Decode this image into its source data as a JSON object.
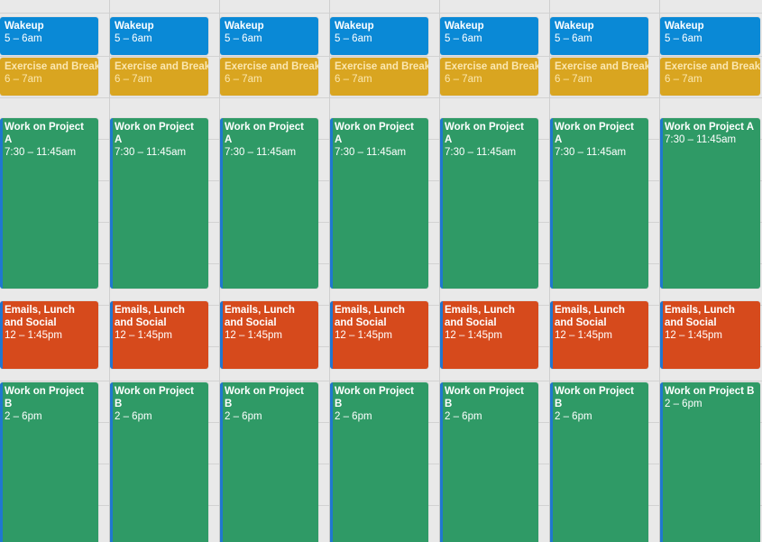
{
  "calendar": {
    "colors": {
      "wakeup": "#0a89d6",
      "exercise": "#d9a520",
      "project_a": "#2f9a66",
      "emails": "#d64a1c",
      "project_b": "#2f9a66",
      "stripe": "#1f77d0"
    },
    "days": [
      {
        "events": [
          {
            "title": "Wakeup",
            "time": "5 – 6am"
          },
          {
            "title": "Exercise and Breakfast",
            "time": "6 – 7am"
          },
          {
            "title": "Work on Project A",
            "time": "7:30 – 11:45am"
          },
          {
            "title": "Emails, Lunch and Social",
            "time": "12 – 1:45pm"
          },
          {
            "title": "Work on Project B",
            "time": "2 – 6pm"
          }
        ]
      },
      {
        "events": [
          {
            "title": "Wakeup",
            "time": "5 – 6am"
          },
          {
            "title": "Exercise and Breakfast",
            "time": "6 – 7am"
          },
          {
            "title": "Work on Project A",
            "time": "7:30 – 11:45am"
          },
          {
            "title": "Emails, Lunch and Social",
            "time": "12 – 1:45pm"
          },
          {
            "title": "Work on Project B",
            "time": "2 – 6pm"
          }
        ]
      },
      {
        "events": [
          {
            "title": "Wakeup",
            "time": "5 – 6am"
          },
          {
            "title": "Exercise and Breakfast",
            "time": "6 – 7am"
          },
          {
            "title": "Work on Project A",
            "time": "7:30 – 11:45am"
          },
          {
            "title": "Emails, Lunch and Social",
            "time": "12 – 1:45pm"
          },
          {
            "title": "Work on Project B",
            "time": "2 – 6pm"
          }
        ]
      },
      {
        "events": [
          {
            "title": "Wakeup",
            "time": "5 – 6am"
          },
          {
            "title": "Exercise and Breakfast",
            "time": "6 – 7am"
          },
          {
            "title": "Work on Project A",
            "time": "7:30 – 11:45am"
          },
          {
            "title": "Emails, Lunch and Social",
            "time": "12 – 1:45pm"
          },
          {
            "title": "Work on Project B",
            "time": "2 – 6pm"
          }
        ]
      },
      {
        "events": [
          {
            "title": "Wakeup",
            "time": "5 – 6am"
          },
          {
            "title": "Exercise and Breakfast",
            "time": "6 – 7am"
          },
          {
            "title": "Work on Project A",
            "time": "7:30 – 11:45am"
          },
          {
            "title": "Emails, Lunch and Social",
            "time": "12 – 1:45pm"
          },
          {
            "title": "Work on Project B",
            "time": "2 – 6pm"
          }
        ]
      },
      {
        "events": [
          {
            "title": "Wakeup",
            "time": "5 – 6am"
          },
          {
            "title": "Exercise and Breakfast",
            "time": "6 – 7am"
          },
          {
            "title": "Work on Project A",
            "time": "7:30 – 11:45am"
          },
          {
            "title": "Emails, Lunch and Social",
            "time": "12 – 1:45pm"
          },
          {
            "title": "Work on Project B",
            "time": "2 – 6pm"
          }
        ]
      },
      {
        "events": [
          {
            "title": "Wakeup",
            "time": "5 – 6am"
          },
          {
            "title": "Exercise and Breakfast",
            "time": "6 – 7am"
          },
          {
            "title": "Work on Project A",
            "time": "7:30 – 11:45am"
          },
          {
            "title": "Emails, Lunch and Social",
            "time": "12 – 1:45pm"
          },
          {
            "title": "Work on Project B",
            "time": "2 – 6pm"
          }
        ]
      }
    ]
  }
}
